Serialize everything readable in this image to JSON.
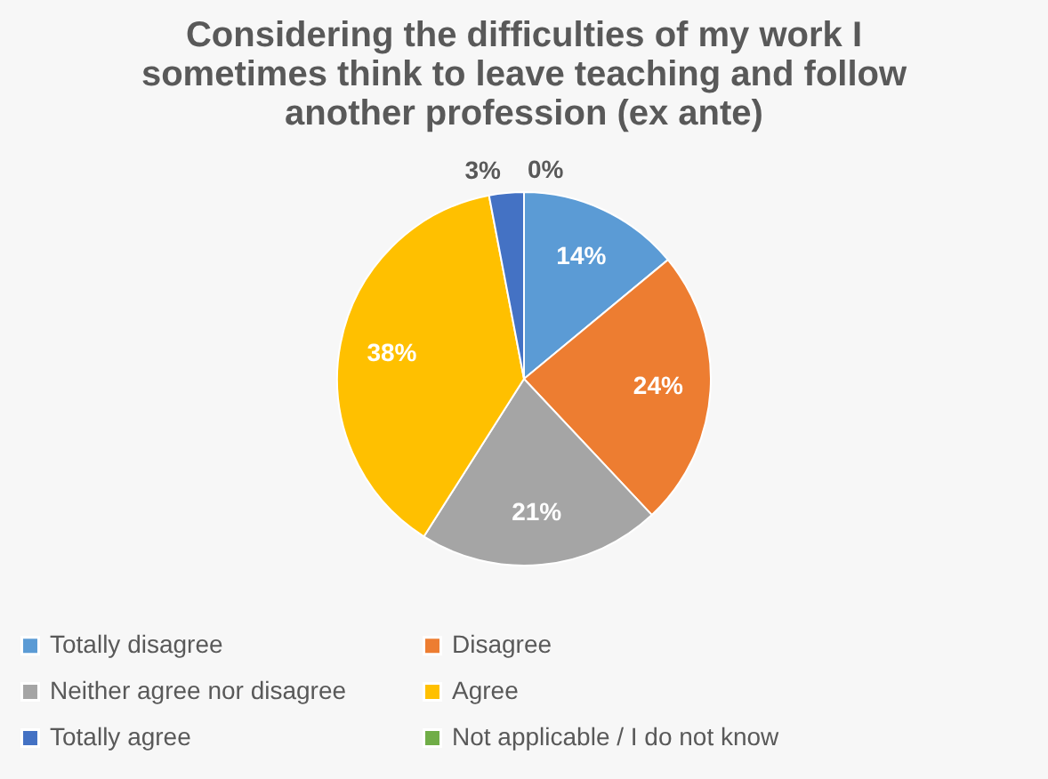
{
  "chart_data": {
    "type": "pie",
    "title": "Considering the difficulties of my work I sometimes think to leave teaching and follow another profession (ex ante)",
    "categories": [
      "Totally disagree",
      "Disagree",
      "Neither agree nor disagree",
      "Agree",
      "Totally agree",
      "Not applicable / I do not know"
    ],
    "values": [
      14,
      24,
      21,
      38,
      3,
      0
    ],
    "colors": [
      "#5b9bd5",
      "#ed7d31",
      "#a5a5a5",
      "#ffc000",
      "#4472c4",
      "#70ad47"
    ],
    "value_labels": [
      "14%",
      "24%",
      "21%",
      "38%",
      "3%",
      "0%"
    ],
    "legend": "bottom"
  }
}
